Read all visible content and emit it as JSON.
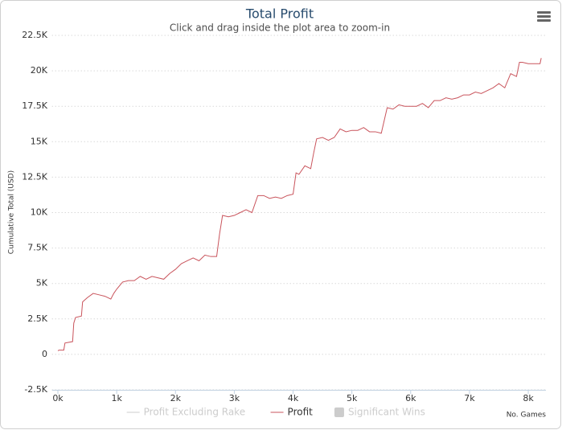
{
  "chart_data": {
    "type": "line",
    "title": "Total Profit",
    "subtitle": "Click and drag inside the plot area to zoom-in",
    "x_label": "No. Games",
    "y_label": "Cumulative Total (USD)",
    "xlim": [
      -100,
      8300
    ],
    "ylim": [
      -2500,
      22500
    ],
    "xticks": [
      {
        "value": 0,
        "label": "0k"
      },
      {
        "value": 1000,
        "label": "1k"
      },
      {
        "value": 2000,
        "label": "2k"
      },
      {
        "value": 3000,
        "label": "3k"
      },
      {
        "value": 4000,
        "label": "4k"
      },
      {
        "value": 5000,
        "label": "5k"
      },
      {
        "value": 6000,
        "label": "6k"
      },
      {
        "value": 7000,
        "label": "7k"
      },
      {
        "value": 8000,
        "label": "8k"
      }
    ],
    "yticks": [
      {
        "value": -2500,
        "label": "-2.5K"
      },
      0,
      {
        "value": 2500,
        "label": "2.5K"
      },
      {
        "value": 5000,
        "label": "5K"
      },
      {
        "value": 7500,
        "label": "7.5K"
      },
      {
        "value": 10000,
        "label": "10K"
      },
      {
        "value": 12500,
        "label": "12.5K"
      },
      {
        "value": 15000,
        "label": "15K"
      },
      {
        "value": 17500,
        "label": "17.5K"
      },
      {
        "value": 20000,
        "label": "20K"
      },
      {
        "value": 22500,
        "label": "22.5K"
      }
    ],
    "grid": true,
    "x": [
      0,
      20,
      100,
      120,
      250,
      270,
      300,
      400,
      420,
      500,
      600,
      700,
      800,
      900,
      950,
      1000,
      1100,
      1200,
      1300,
      1400,
      1500,
      1600,
      1700,
      1800,
      1900,
      2000,
      2100,
      2200,
      2300,
      2400,
      2500,
      2600,
      2700,
      2750,
      2800,
      2900,
      3000,
      3100,
      3200,
      3300,
      3400,
      3500,
      3600,
      3700,
      3800,
      3900,
      4000,
      4050,
      4100,
      4200,
      4300,
      4350,
      4400,
      4500,
      4600,
      4700,
      4800,
      4900,
      5000,
      5100,
      5200,
      5300,
      5400,
      5500,
      5550,
      5600,
      5700,
      5800,
      5900,
      6000,
      6100,
      6200,
      6300,
      6400,
      6500,
      6600,
      6700,
      6800,
      6900,
      7000,
      7100,
      7200,
      7300,
      7400,
      7500,
      7600,
      7700,
      7800,
      7850,
      7900,
      8000,
      8100,
      8200,
      8220
    ],
    "series": [
      {
        "name": "Profit Excluding Rake",
        "color": "#cccccc",
        "symbol": "line",
        "visible": false
      },
      {
        "name": "Profit",
        "color": "#c9545c",
        "symbol": "line",
        "visible": true,
        "values": [
          250,
          300,
          300,
          800,
          900,
          2200,
          2600,
          2700,
          3700,
          4000,
          4300,
          4200,
          4100,
          3900,
          4300,
          4600,
          5100,
          5200,
          5200,
          5500,
          5300,
          5500,
          5400,
          5300,
          5700,
          6000,
          6400,
          6600,
          6800,
          6600,
          7000,
          6900,
          6900,
          8500,
          9800,
          9700,
          9800,
          10000,
          10200,
          10000,
          11200,
          11200,
          11000,
          11100,
          11000,
          11200,
          11300,
          12800,
          12700,
          13300,
          13100,
          14200,
          15200,
          15300,
          15100,
          15300,
          15900,
          15700,
          15800,
          15800,
          16000,
          15700,
          15700,
          15600,
          16500,
          17400,
          17300,
          17600,
          17500,
          17500,
          17500,
          17700,
          17400,
          17900,
          17900,
          18100,
          18000,
          18100,
          18300,
          18300,
          18500,
          18400,
          18600,
          18800,
          19100,
          18800,
          19800,
          19600,
          20600,
          20600,
          20500,
          20500,
          20500,
          20900
        ]
      },
      {
        "name": "Significant Wins",
        "color": "#cccccc",
        "symbol": "rect",
        "visible": false
      }
    ]
  }
}
